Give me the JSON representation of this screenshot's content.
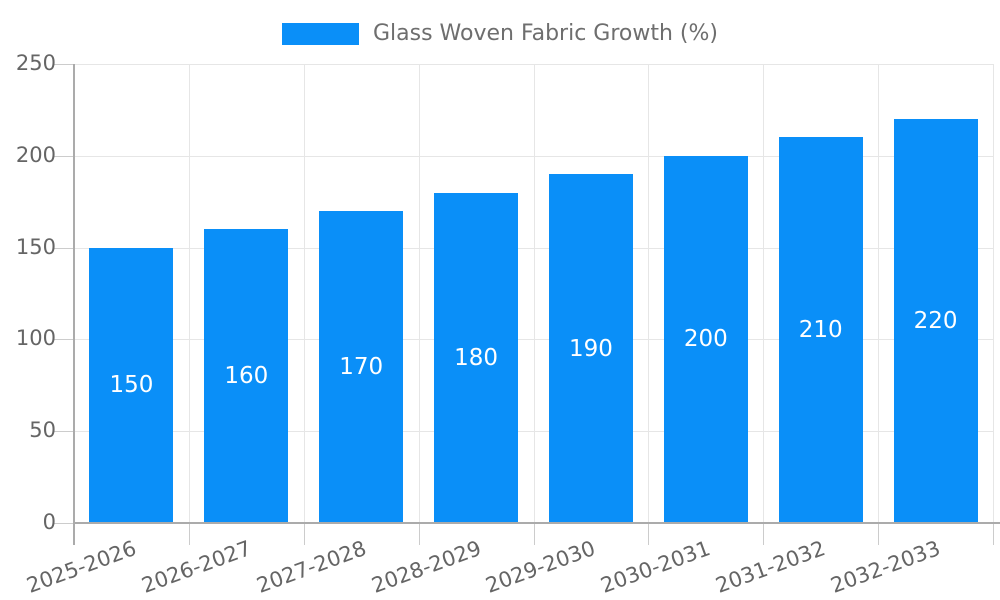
{
  "chart_data": {
    "type": "bar",
    "title": "",
    "legend": {
      "label": "Glass Woven Fabric Growth (%)",
      "position": "top-center",
      "swatch_shape": "rectangle"
    },
    "categories": [
      "2025-2026",
      "2026-2027",
      "2027-2028",
      "2028-2029",
      "2029-2030",
      "2030-2031",
      "2031-2032",
      "2032-2033"
    ],
    "values": [
      150,
      160,
      170,
      180,
      190,
      200,
      210,
      220
    ],
    "xlabel": "",
    "ylabel": "",
    "ylim": [
      0,
      250
    ],
    "yticks": [
      0,
      50,
      100,
      150,
      200,
      250
    ],
    "grid": true,
    "bar_value_labels": "inside-center",
    "x_label_rotation_deg": -20,
    "colors": {
      "bar": "#0a8ff8",
      "value_label": "#ffffff",
      "axis_label": "#656565",
      "legend_label": "#6e6e6e",
      "grid": "#e6e6e6",
      "tick": "#cccccc",
      "spine": "#ababab",
      "background": "#ffffff"
    }
  }
}
